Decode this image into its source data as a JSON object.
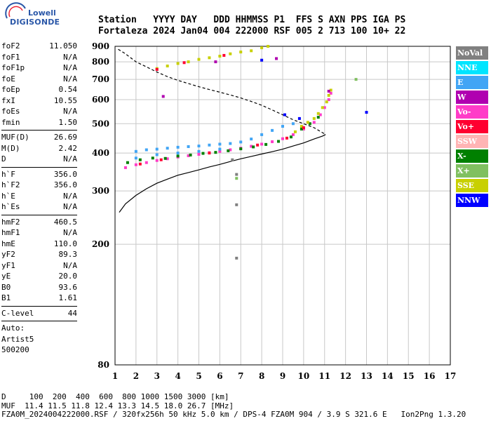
{
  "logo": {
    "line1": "Lowell",
    "line2": "DIGISONDE"
  },
  "header": {
    "line1": "Station   YYYY DAY   DDD HHMMSS P1  FFS S AXN PPS IGA PS",
    "line2": "Fortaleza 2024 Jan04 004 222000 RSF 005 2 713 100 10+ 22"
  },
  "params": {
    "group1": [
      {
        "k": "foF2",
        "v": "11.050"
      },
      {
        "k": "foF1",
        "v": "N/A"
      },
      {
        "k": "foF1p",
        "v": "N/A"
      },
      {
        "k": "foE",
        "v": "N/A"
      },
      {
        "k": "foEp",
        "v": "0.54"
      },
      {
        "k": "fxI",
        "v": "10.55"
      },
      {
        "k": "foEs",
        "v": "N/A"
      },
      {
        "k": "fmin",
        "v": "1.50"
      }
    ],
    "group2": [
      {
        "k": "MUF(D)",
        "v": "26.69"
      },
      {
        "k": "M(D)",
        "v": "2.42"
      },
      {
        "k": "D",
        "v": "N/A"
      }
    ],
    "group3": [
      {
        "k": "h`F",
        "v": "356.0"
      },
      {
        "k": "h`F2",
        "v": "356.0"
      },
      {
        "k": "h`E",
        "v": "N/A"
      },
      {
        "k": "h`Es",
        "v": "N/A"
      }
    ],
    "group4": [
      {
        "k": "hmF2",
        "v": "460.5"
      },
      {
        "k": "hmF1",
        "v": "N/A"
      },
      {
        "k": "hmE",
        "v": "110.0"
      },
      {
        "k": "yF2",
        "v": "89.3"
      },
      {
        "k": "yF1",
        "v": "N/A"
      },
      {
        "k": "yE",
        "v": "20.0"
      },
      {
        "k": "B0",
        "v": "93.6"
      },
      {
        "k": "B1",
        "v": "1.61"
      }
    ],
    "group5": [
      {
        "k": "C-level",
        "v": "44"
      }
    ],
    "auto": [
      "Auto:",
      "Artist5",
      "500200"
    ]
  },
  "footer": {
    "line1": "D     100  200  400  600  800 1000 1500 3000 [km]",
    "line2": "MUF  11.4 11.5 11.8 12.4 13.3 14.5 18.0 26.7 [MHz]",
    "line3": "FZA0M_2024004222000.RSF / 320fx256h 50 kHz 5.0 km / DPS-4 FZA0M 904 / 3.9 S 321.6 E   Ion2Png 1.3.20"
  },
  "legend": [
    {
      "label": "NoVal",
      "color": "#808080"
    },
    {
      "label": "NNE",
      "color": "#00e5ff"
    },
    {
      "label": "E",
      "color": "#41a5f5"
    },
    {
      "label": "W",
      "color": "#b000b0"
    },
    {
      "label": "Vo-",
      "color": "#ff3cc8"
    },
    {
      "label": "Vo+",
      "color": "#ff0030"
    },
    {
      "label": "SSW",
      "color": "#ffb4b4"
    },
    {
      "label": "X-",
      "color": "#008000"
    },
    {
      "label": "X+",
      "color": "#80c060"
    },
    {
      "label": "SSE",
      "color": "#c8d000"
    },
    {
      "label": "NNW",
      "color": "#0000ff"
    }
  ],
  "chart_data": {
    "type": "scatter",
    "title": "",
    "xlabel": "",
    "ylabel": "",
    "xlim": [
      1,
      17
    ],
    "ylim": [
      80,
      900
    ],
    "xticks": [
      "1",
      "2",
      "3",
      "4",
      "5",
      "6",
      "7",
      "8",
      "9",
      "10",
      "11",
      "12",
      "13",
      "14",
      "15",
      "16",
      "17"
    ],
    "yticks": [
      {
        "v": 80,
        "label": "80"
      },
      {
        "v": 200,
        "label": "200"
      },
      {
        "v": 300,
        "label": "300"
      },
      {
        "v": 400,
        "label": "400"
      },
      {
        "v": 500,
        "label": "500"
      },
      {
        "v": 600,
        "label": "600"
      },
      {
        "v": 700,
        "label": "700"
      },
      {
        "v": 800,
        "label": "800"
      },
      {
        "v": 900,
        "label": "900"
      }
    ],
    "grid": true,
    "y_scale": "log",
    "series": [
      {
        "name": "Vo-",
        "color": "#ff3cc8",
        "points": [
          [
            1.5,
            358
          ],
          [
            2,
            366
          ],
          [
            2.5,
            372
          ],
          [
            3,
            378
          ],
          [
            3.5,
            383
          ],
          [
            4,
            388
          ],
          [
            4.5,
            392
          ],
          [
            5,
            396
          ],
          [
            5.5,
            401
          ],
          [
            6,
            405
          ],
          [
            6.5,
            410
          ],
          [
            7,
            415
          ],
          [
            7.5,
            421
          ],
          [
            8,
            428
          ],
          [
            8.5,
            436
          ],
          [
            9,
            446
          ],
          [
            9.5,
            460
          ],
          [
            10,
            480
          ],
          [
            10.5,
            505
          ],
          [
            10.8,
            535
          ],
          [
            11,
            565
          ],
          [
            11.2,
            600
          ],
          [
            11.3,
            630
          ]
        ]
      },
      {
        "name": "X-",
        "color": "#008000",
        "points": [
          [
            1.6,
            372
          ],
          [
            2.2,
            380
          ],
          [
            2.8,
            385
          ],
          [
            3.4,
            384
          ],
          [
            4,
            391
          ],
          [
            4.6,
            394
          ],
          [
            5.2,
            399
          ],
          [
            5.8,
            402
          ],
          [
            6.4,
            407
          ],
          [
            7,
            413
          ],
          [
            7.6,
            419
          ],
          [
            8.2,
            427
          ],
          [
            8.8,
            437
          ],
          [
            9.4,
            452
          ],
          [
            9.9,
            480
          ],
          [
            10.3,
            500
          ],
          [
            10.7,
            525
          ]
        ]
      },
      {
        "name": "SSE",
        "color": "#c8d000",
        "points": [
          [
            9.6,
            470
          ],
          [
            9.9,
            490
          ],
          [
            10.2,
            505
          ],
          [
            10.5,
            520
          ],
          [
            10.7,
            540
          ],
          [
            10.9,
            565
          ],
          [
            11.1,
            590
          ],
          [
            11.2,
            620
          ],
          [
            11.3,
            645
          ],
          [
            3,
            760
          ],
          [
            3.5,
            775
          ],
          [
            4,
            790
          ],
          [
            4.5,
            800
          ],
          [
            5,
            815
          ],
          [
            5.5,
            825
          ],
          [
            6,
            835
          ],
          [
            6.5,
            850
          ],
          [
            7,
            862
          ],
          [
            7.5,
            870
          ],
          [
            8,
            890
          ],
          [
            8.3,
            900
          ]
        ]
      },
      {
        "name": "E",
        "color": "#41a5f5",
        "points": [
          [
            2,
            405
          ],
          [
            2.5,
            410
          ],
          [
            3,
            412
          ],
          [
            3.5,
            415
          ],
          [
            4,
            418
          ],
          [
            4.5,
            420
          ],
          [
            5,
            422
          ],
          [
            5.5,
            425
          ],
          [
            6,
            428
          ],
          [
            6.5,
            430
          ],
          [
            7,
            435
          ],
          [
            7.5,
            445
          ],
          [
            8,
            460
          ],
          [
            8.5,
            475
          ],
          [
            9,
            490
          ],
          [
            9.5,
            500
          ],
          [
            2,
            385
          ],
          [
            3,
            395
          ],
          [
            4,
            400
          ],
          [
            5,
            405
          ],
          [
            6,
            412
          ]
        ]
      },
      {
        "name": "Vo+",
        "color": "#ff0030",
        "points": [
          [
            2.2,
            368
          ],
          [
            3.2,
            380
          ],
          [
            5.5,
            400
          ],
          [
            7.8,
            425
          ],
          [
            9.2,
            448
          ],
          [
            10,
            485
          ],
          [
            3,
            755
          ],
          [
            4.3,
            795
          ],
          [
            6.2,
            840
          ]
        ]
      },
      {
        "name": "W",
        "color": "#b000b0",
        "points": [
          [
            3.3,
            615
          ],
          [
            5.8,
            800
          ],
          [
            8.7,
            820
          ],
          [
            11.2,
            640
          ]
        ]
      },
      {
        "name": "NNW",
        "color": "#0000ff",
        "points": [
          [
            9.8,
            520
          ],
          [
            13,
            545
          ],
          [
            8,
            810
          ],
          [
            9.1,
            535
          ]
        ]
      },
      {
        "name": "X+",
        "color": "#80c060",
        "points": [
          [
            6.8,
            330
          ],
          [
            12.5,
            700
          ]
        ]
      },
      {
        "name": "NoVal",
        "color": "#808080",
        "points": [
          [
            6.8,
            270
          ],
          [
            6.8,
            180
          ],
          [
            6.6,
            380
          ],
          [
            6.8,
            340
          ]
        ]
      }
    ],
    "lines": [
      {
        "name": "profile",
        "style": "solid",
        "points": [
          [
            1.2,
            255
          ],
          [
            1.5,
            272
          ],
          [
            2,
            290
          ],
          [
            2.5,
            305
          ],
          [
            3,
            318
          ],
          [
            3.5,
            328
          ],
          [
            4,
            338
          ],
          [
            4.5,
            345
          ],
          [
            5,
            352
          ],
          [
            5.5,
            360
          ],
          [
            6,
            367
          ],
          [
            6.5,
            375
          ],
          [
            7,
            383
          ],
          [
            7.5,
            390
          ],
          [
            8,
            397
          ],
          [
            8.5,
            404
          ],
          [
            9,
            412
          ],
          [
            9.5,
            422
          ],
          [
            10,
            432
          ],
          [
            10.5,
            445
          ],
          [
            10.9,
            455
          ],
          [
            11.05,
            460.5
          ]
        ]
      },
      {
        "name": "mufcurve",
        "style": "dashed",
        "points": [
          [
            1.15,
            880
          ],
          [
            1.5,
            850
          ],
          [
            2,
            800
          ],
          [
            2.5,
            770
          ],
          [
            3,
            740
          ],
          [
            3.5,
            715
          ],
          [
            4,
            695
          ],
          [
            4.5,
            678
          ],
          [
            5,
            662
          ],
          [
            5.5,
            648
          ],
          [
            6,
            635
          ],
          [
            6.5,
            622
          ],
          [
            7,
            608
          ],
          [
            7.5,
            592
          ],
          [
            8,
            575
          ],
          [
            8.5,
            555
          ],
          [
            9,
            535
          ],
          [
            9.5,
            515
          ],
          [
            10,
            500
          ],
          [
            10.5,
            485
          ],
          [
            11.05,
            460.5
          ]
        ]
      }
    ]
  }
}
